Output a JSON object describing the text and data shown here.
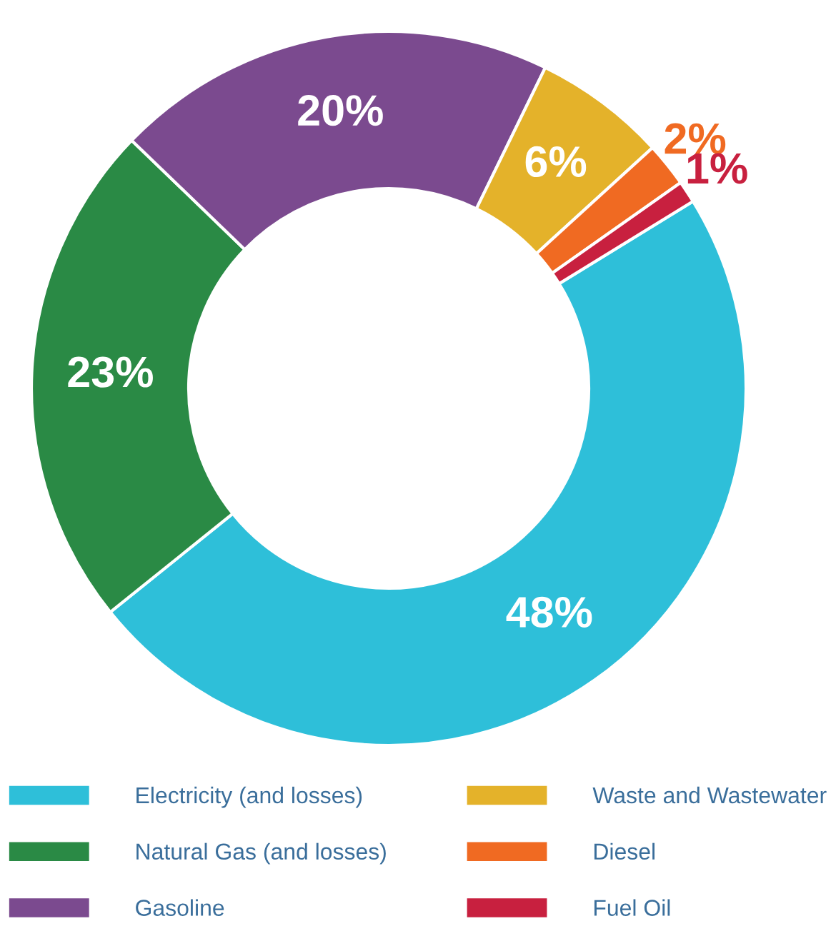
{
  "chart_data": {
    "type": "donut",
    "categories": [
      "Electricity (and losses)",
      "Natural Gas (and losses)",
      "Gasoline",
      "Waste and Wastewater",
      "Diesel",
      "Fuel Oil"
    ],
    "values": [
      48,
      23,
      20,
      6,
      2,
      1
    ],
    "colors": [
      "#2ebfd9",
      "#2a8a45",
      "#7b4a8f",
      "#e4b22a",
      "#f06a22",
      "#c8203f"
    ],
    "value_labels": [
      "48%",
      "23%",
      "20%",
      "6%",
      "2%",
      "1%"
    ],
    "legend": "bottom"
  }
}
